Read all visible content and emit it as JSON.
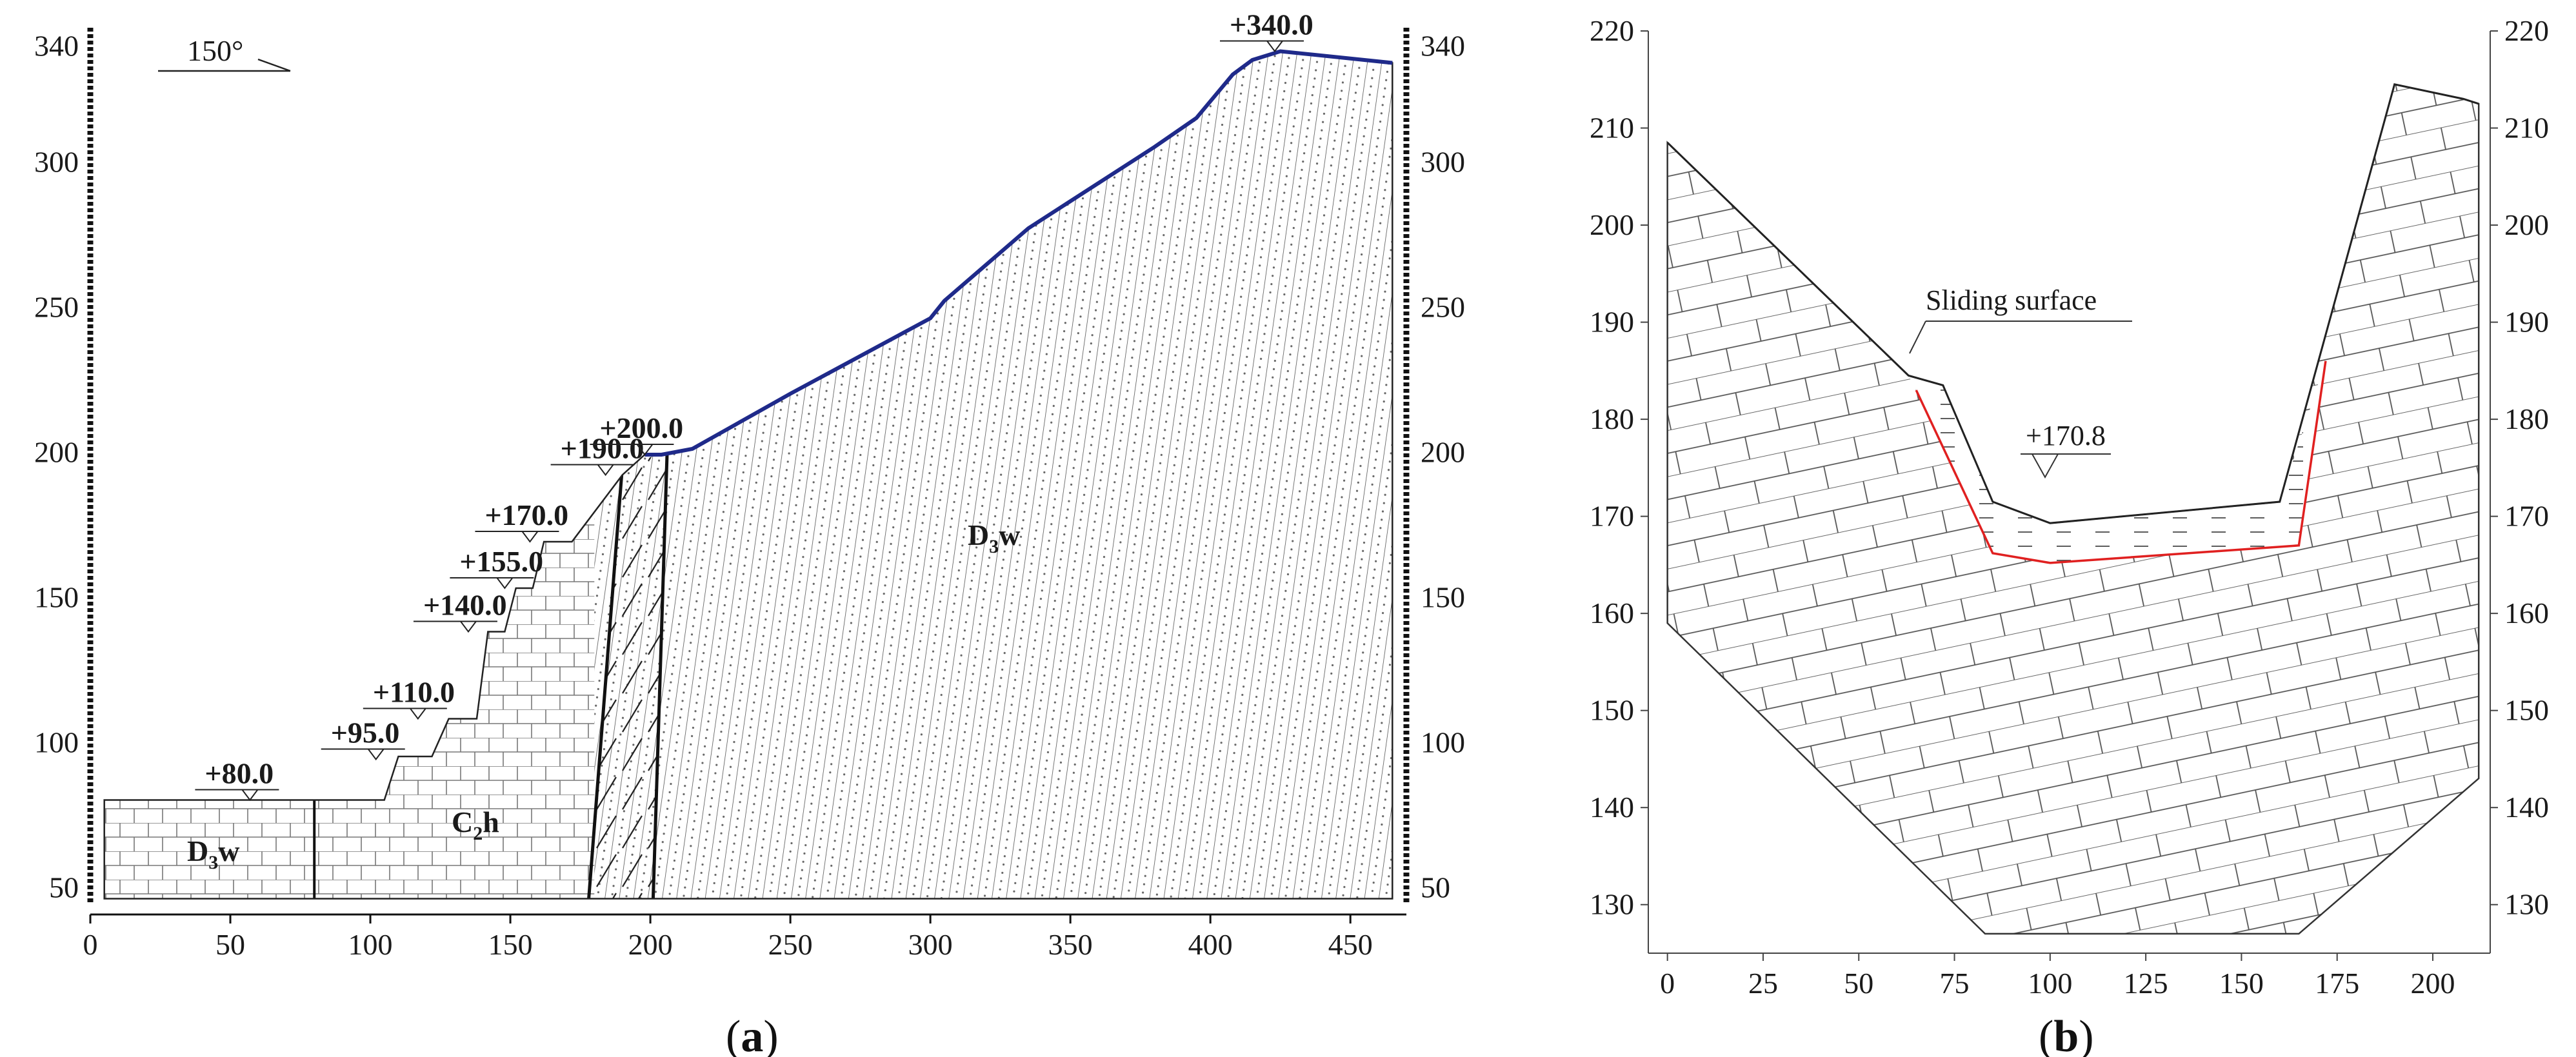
{
  "panel_a": {
    "label_open": "(",
    "label_letter": "a",
    "label_close": ")",
    "y_ticks": [
      50,
      100,
      150,
      200,
      250,
      300,
      340
    ],
    "x_ticks": [
      0,
      50,
      100,
      150,
      200,
      250,
      300,
      350,
      400,
      450
    ],
    "xlim": [
      0,
      470
    ],
    "ylim": [
      45,
      345
    ],
    "strike": "150°",
    "elevations": [
      {
        "text": "+80.0",
        "x": 57,
        "y": 80
      },
      {
        "text": "+95.0",
        "x": 102,
        "y": 94
      },
      {
        "text": "+110.0",
        "x": 117,
        "y": 108
      },
      {
        "text": "+140.0",
        "x": 135,
        "y": 138
      },
      {
        "text": "+155.0",
        "x": 148,
        "y": 153
      },
      {
        "text": "+170.0",
        "x": 157,
        "y": 169
      },
      {
        "text": "+190.0",
        "x": 184,
        "y": 192
      },
      {
        "text": "+200.0",
        "x": 198,
        "y": 199
      },
      {
        "text": "+340.0",
        "x": 423,
        "y": 338
      }
    ],
    "formations": {
      "d3w_left_main": "D",
      "d3w_left_sub": "3",
      "d3w_left_tail": "w",
      "c2h_main": "C",
      "c2h_sub": "2",
      "c2h_tail": "h",
      "d3w_right_main": "D",
      "d3w_right_sub": "3",
      "d3w_right_tail": "w"
    },
    "profile": [
      [
        5,
        80
      ],
      [
        105,
        80
      ],
      [
        110,
        95
      ],
      [
        122,
        95
      ],
      [
        128,
        108
      ],
      [
        138,
        108
      ],
      [
        142,
        138
      ],
      [
        148,
        138
      ],
      [
        152,
        153
      ],
      [
        158,
        153
      ],
      [
        162,
        169
      ],
      [
        172,
        169
      ],
      [
        190,
        192
      ],
      [
        198,
        199
      ],
      [
        204,
        199
      ],
      [
        215,
        201
      ],
      [
        250,
        220
      ],
      [
        300,
        246
      ],
      [
        305,
        252
      ],
      [
        335,
        277
      ],
      [
        380,
        305
      ],
      [
        395,
        315
      ],
      [
        408,
        330
      ],
      [
        415,
        335
      ],
      [
        425,
        338
      ],
      [
        465,
        334
      ]
    ],
    "colors": {
      "surface": "#1f2a8a",
      "line": "#222222"
    }
  },
  "panel_b": {
    "label_open": "(",
    "label_letter": "b",
    "label_close": ")",
    "y_ticks": [
      130,
      140,
      150,
      160,
      170,
      180,
      190,
      200,
      210,
      220
    ],
    "x_ticks": [
      0,
      25,
      50,
      75,
      100,
      125,
      150,
      175,
      200
    ],
    "xlim": [
      -5,
      215
    ],
    "ylim": [
      125,
      220
    ],
    "sliding_surface": "Sliding surface",
    "elevation": "+170.8",
    "colors": {
      "sliding": "#e02020",
      "line": "#333333"
    }
  }
}
